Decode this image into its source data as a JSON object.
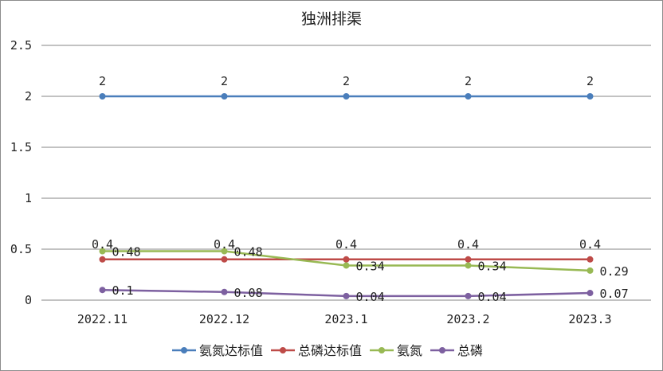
{
  "chart_data": {
    "type": "line",
    "title": "独洲排渠",
    "categories": [
      "2022.11",
      "2022.12",
      "2023.1",
      "2023.2",
      "2023.3"
    ],
    "ylim": [
      0,
      2.5
    ],
    "yticks": [
      "0",
      "0.5",
      "1",
      "1.5",
      "2",
      "2.5"
    ],
    "grid": true,
    "legend_position": "bottom",
    "series": [
      {
        "name": "氨氮达标值",
        "color": "#4a7ebb",
        "values": [
          2,
          2,
          2,
          2,
          2
        ],
        "labels": [
          "2",
          "2",
          "2",
          "2",
          "2"
        ]
      },
      {
        "name": "总磷达标值",
        "color": "#be4b48",
        "values": [
          0.4,
          0.4,
          0.4,
          0.4,
          0.4
        ],
        "labels": [
          "0.4",
          "0.4",
          "0.4",
          "0.4",
          "0.4"
        ]
      },
      {
        "name": "氨氮",
        "color": "#98b954",
        "values": [
          0.48,
          0.48,
          0.34,
          0.34,
          0.29
        ],
        "labels": [
          "0.48",
          "0.48",
          "0.34",
          "0.34",
          "0.29"
        ]
      },
      {
        "name": "总磷",
        "color": "#7d60a0",
        "values": [
          0.1,
          0.08,
          0.04,
          0.04,
          0.07
        ],
        "labels": [
          "0.1",
          "0.08",
          "0.04",
          "0.04",
          "0.07"
        ]
      }
    ]
  }
}
